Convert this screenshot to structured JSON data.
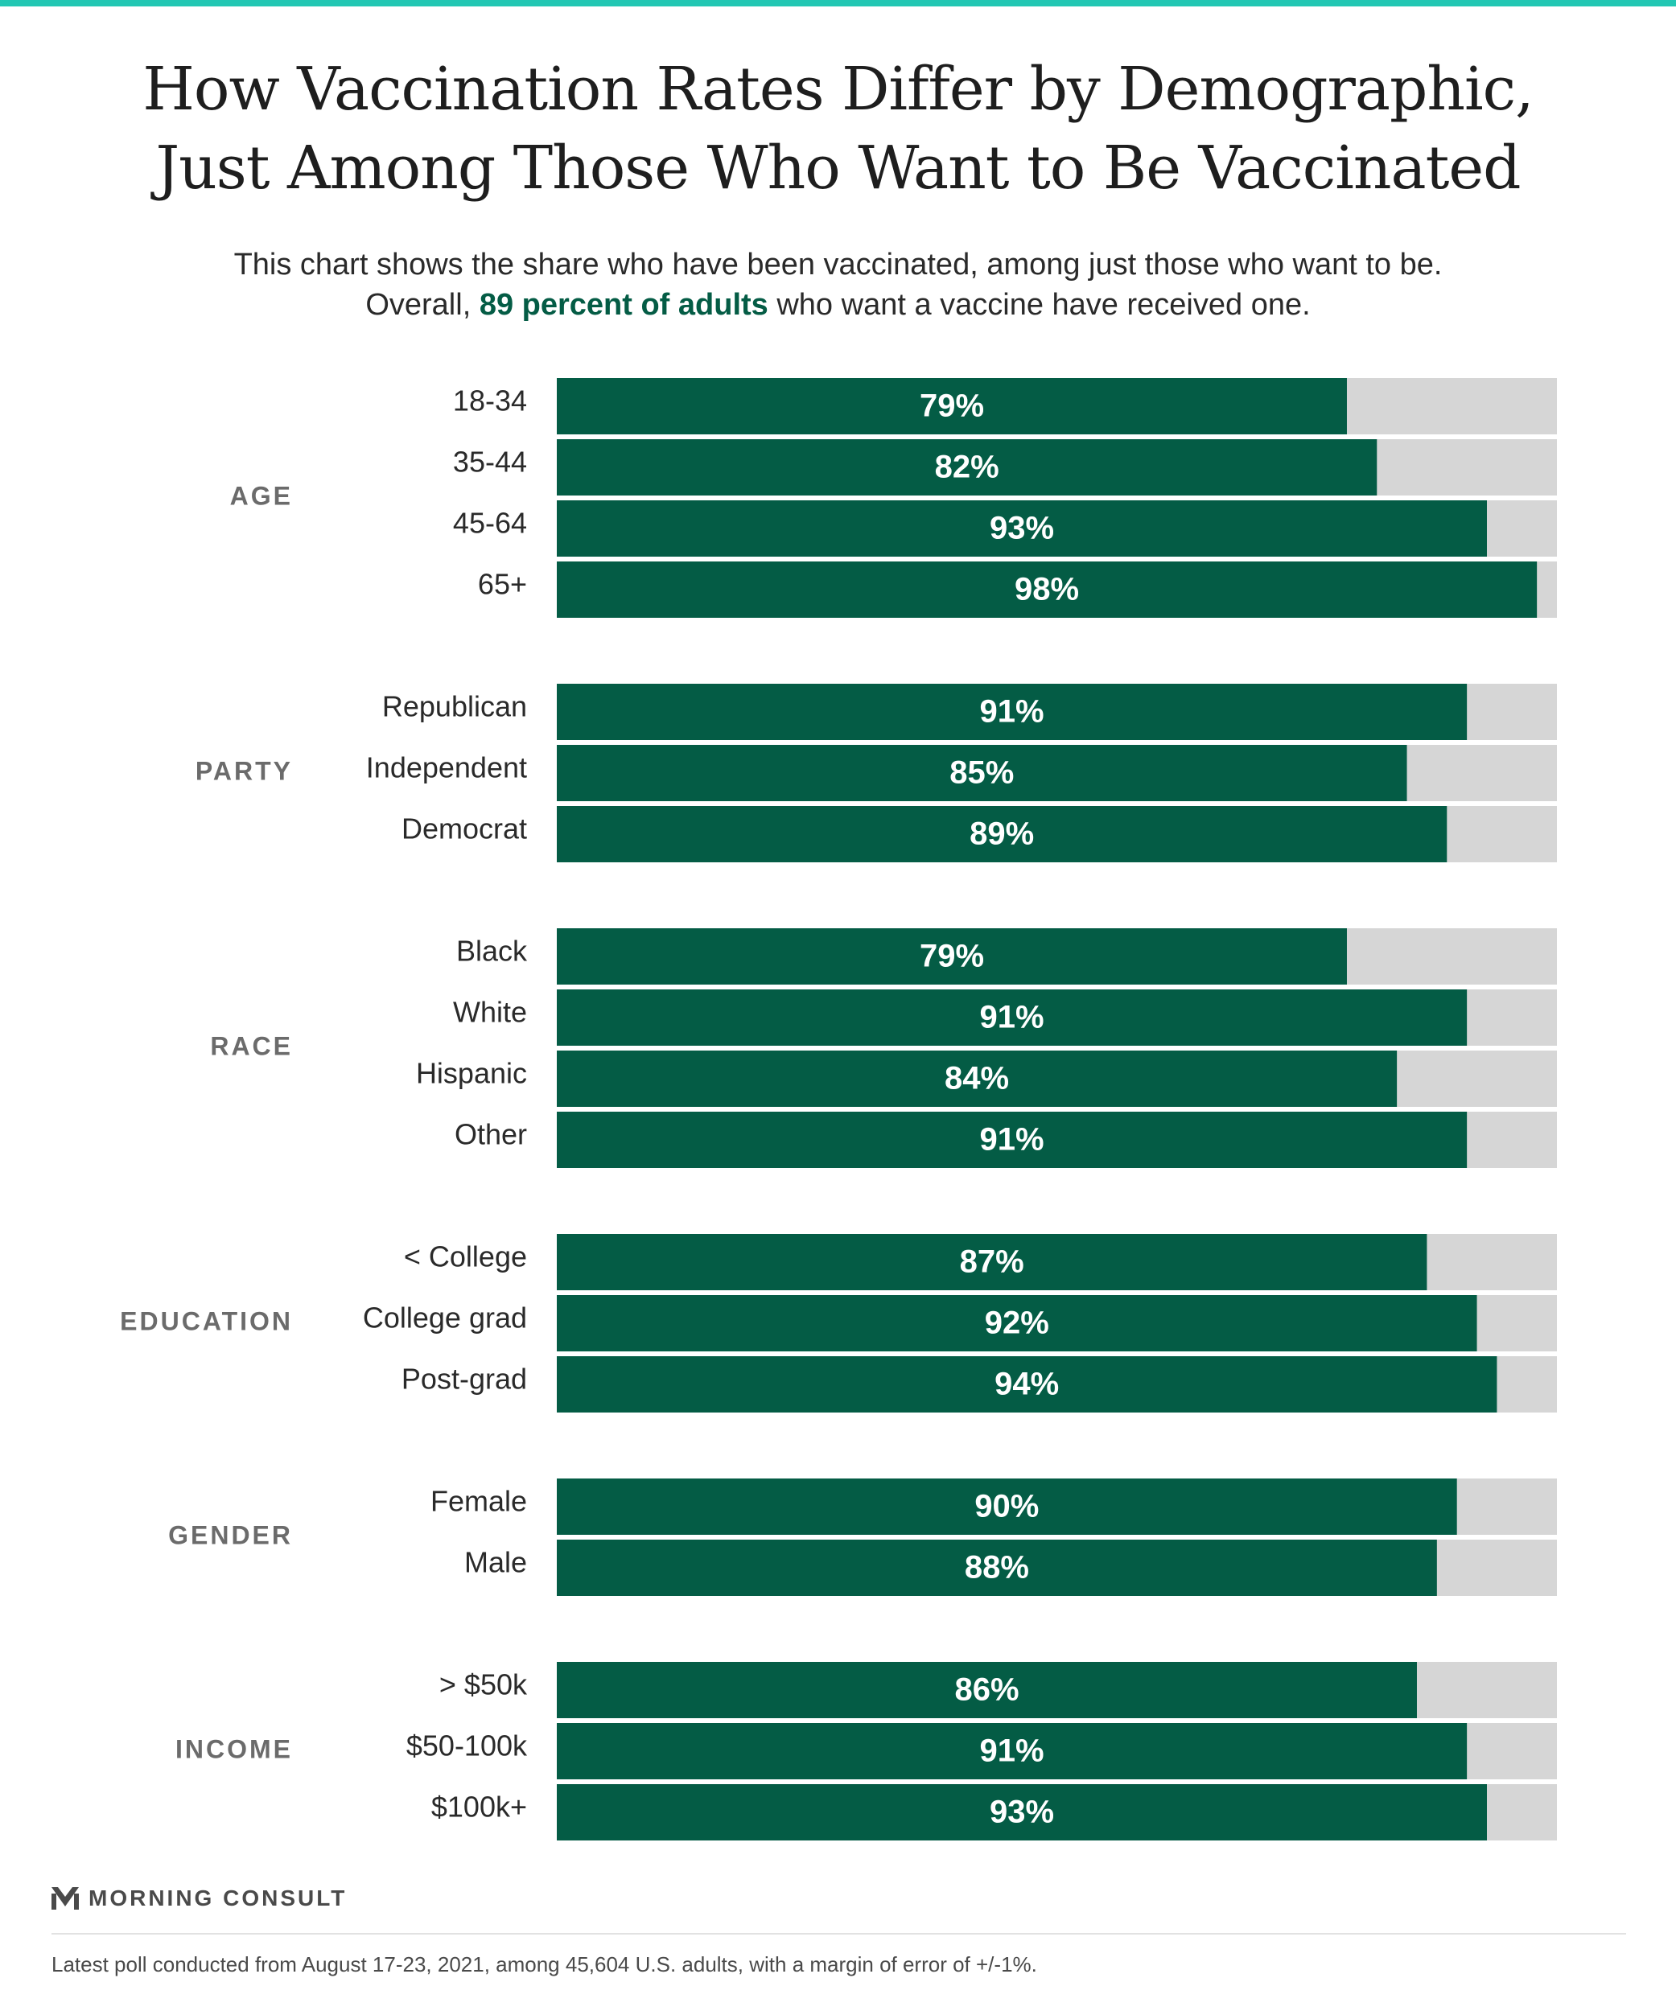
{
  "header": {
    "title_line1": "How Vaccination Rates Differ by Demographic,",
    "title_line2": "Just Among Those Who Want to Be Vaccinated",
    "subtitle_line1": "This chart shows the share who have been vaccinated, among just those who want to be.",
    "subtitle_pre": "Overall, ",
    "subtitle_highlight": "89 percent of adults",
    "subtitle_post": " who want a vaccine have received one."
  },
  "colors": {
    "bar": "#045c45",
    "track": "#d6d6d6",
    "accent_rule": "#22c7b3",
    "group_label": "#6b6b6b"
  },
  "chart_data": {
    "type": "bar",
    "orientation": "horizontal",
    "xlim": [
      0,
      100
    ],
    "unit": "%",
    "groups": [
      {
        "name": "AGE",
        "categories": [
          "18-34",
          "35-44",
          "45-64",
          "65+"
        ],
        "values": [
          79,
          82,
          93,
          98
        ]
      },
      {
        "name": "PARTY",
        "categories": [
          "Republican",
          "Independent",
          "Democrat"
        ],
        "values": [
          91,
          85,
          89
        ]
      },
      {
        "name": "RACE",
        "categories": [
          "Black",
          "White",
          "Hispanic",
          "Other"
        ],
        "values": [
          79,
          91,
          84,
          91
        ]
      },
      {
        "name": "EDUCATION",
        "categories": [
          "< College",
          "College grad",
          "Post-grad"
        ],
        "values": [
          87,
          92,
          94
        ]
      },
      {
        "name": "GENDER",
        "categories": [
          "Female",
          "Male"
        ],
        "values": [
          90,
          88
        ]
      },
      {
        "name": "INCOME",
        "categories": [
          "> $50k",
          "$50-100k",
          "$100k+"
        ],
        "values": [
          86,
          91,
          93
        ]
      }
    ]
  },
  "footer": {
    "brand": "MORNING CONSULT",
    "note": "Latest poll conducted from August 17-23, 2021, among 45,604 U.S. adults, with a margin of error of +/-1%."
  }
}
